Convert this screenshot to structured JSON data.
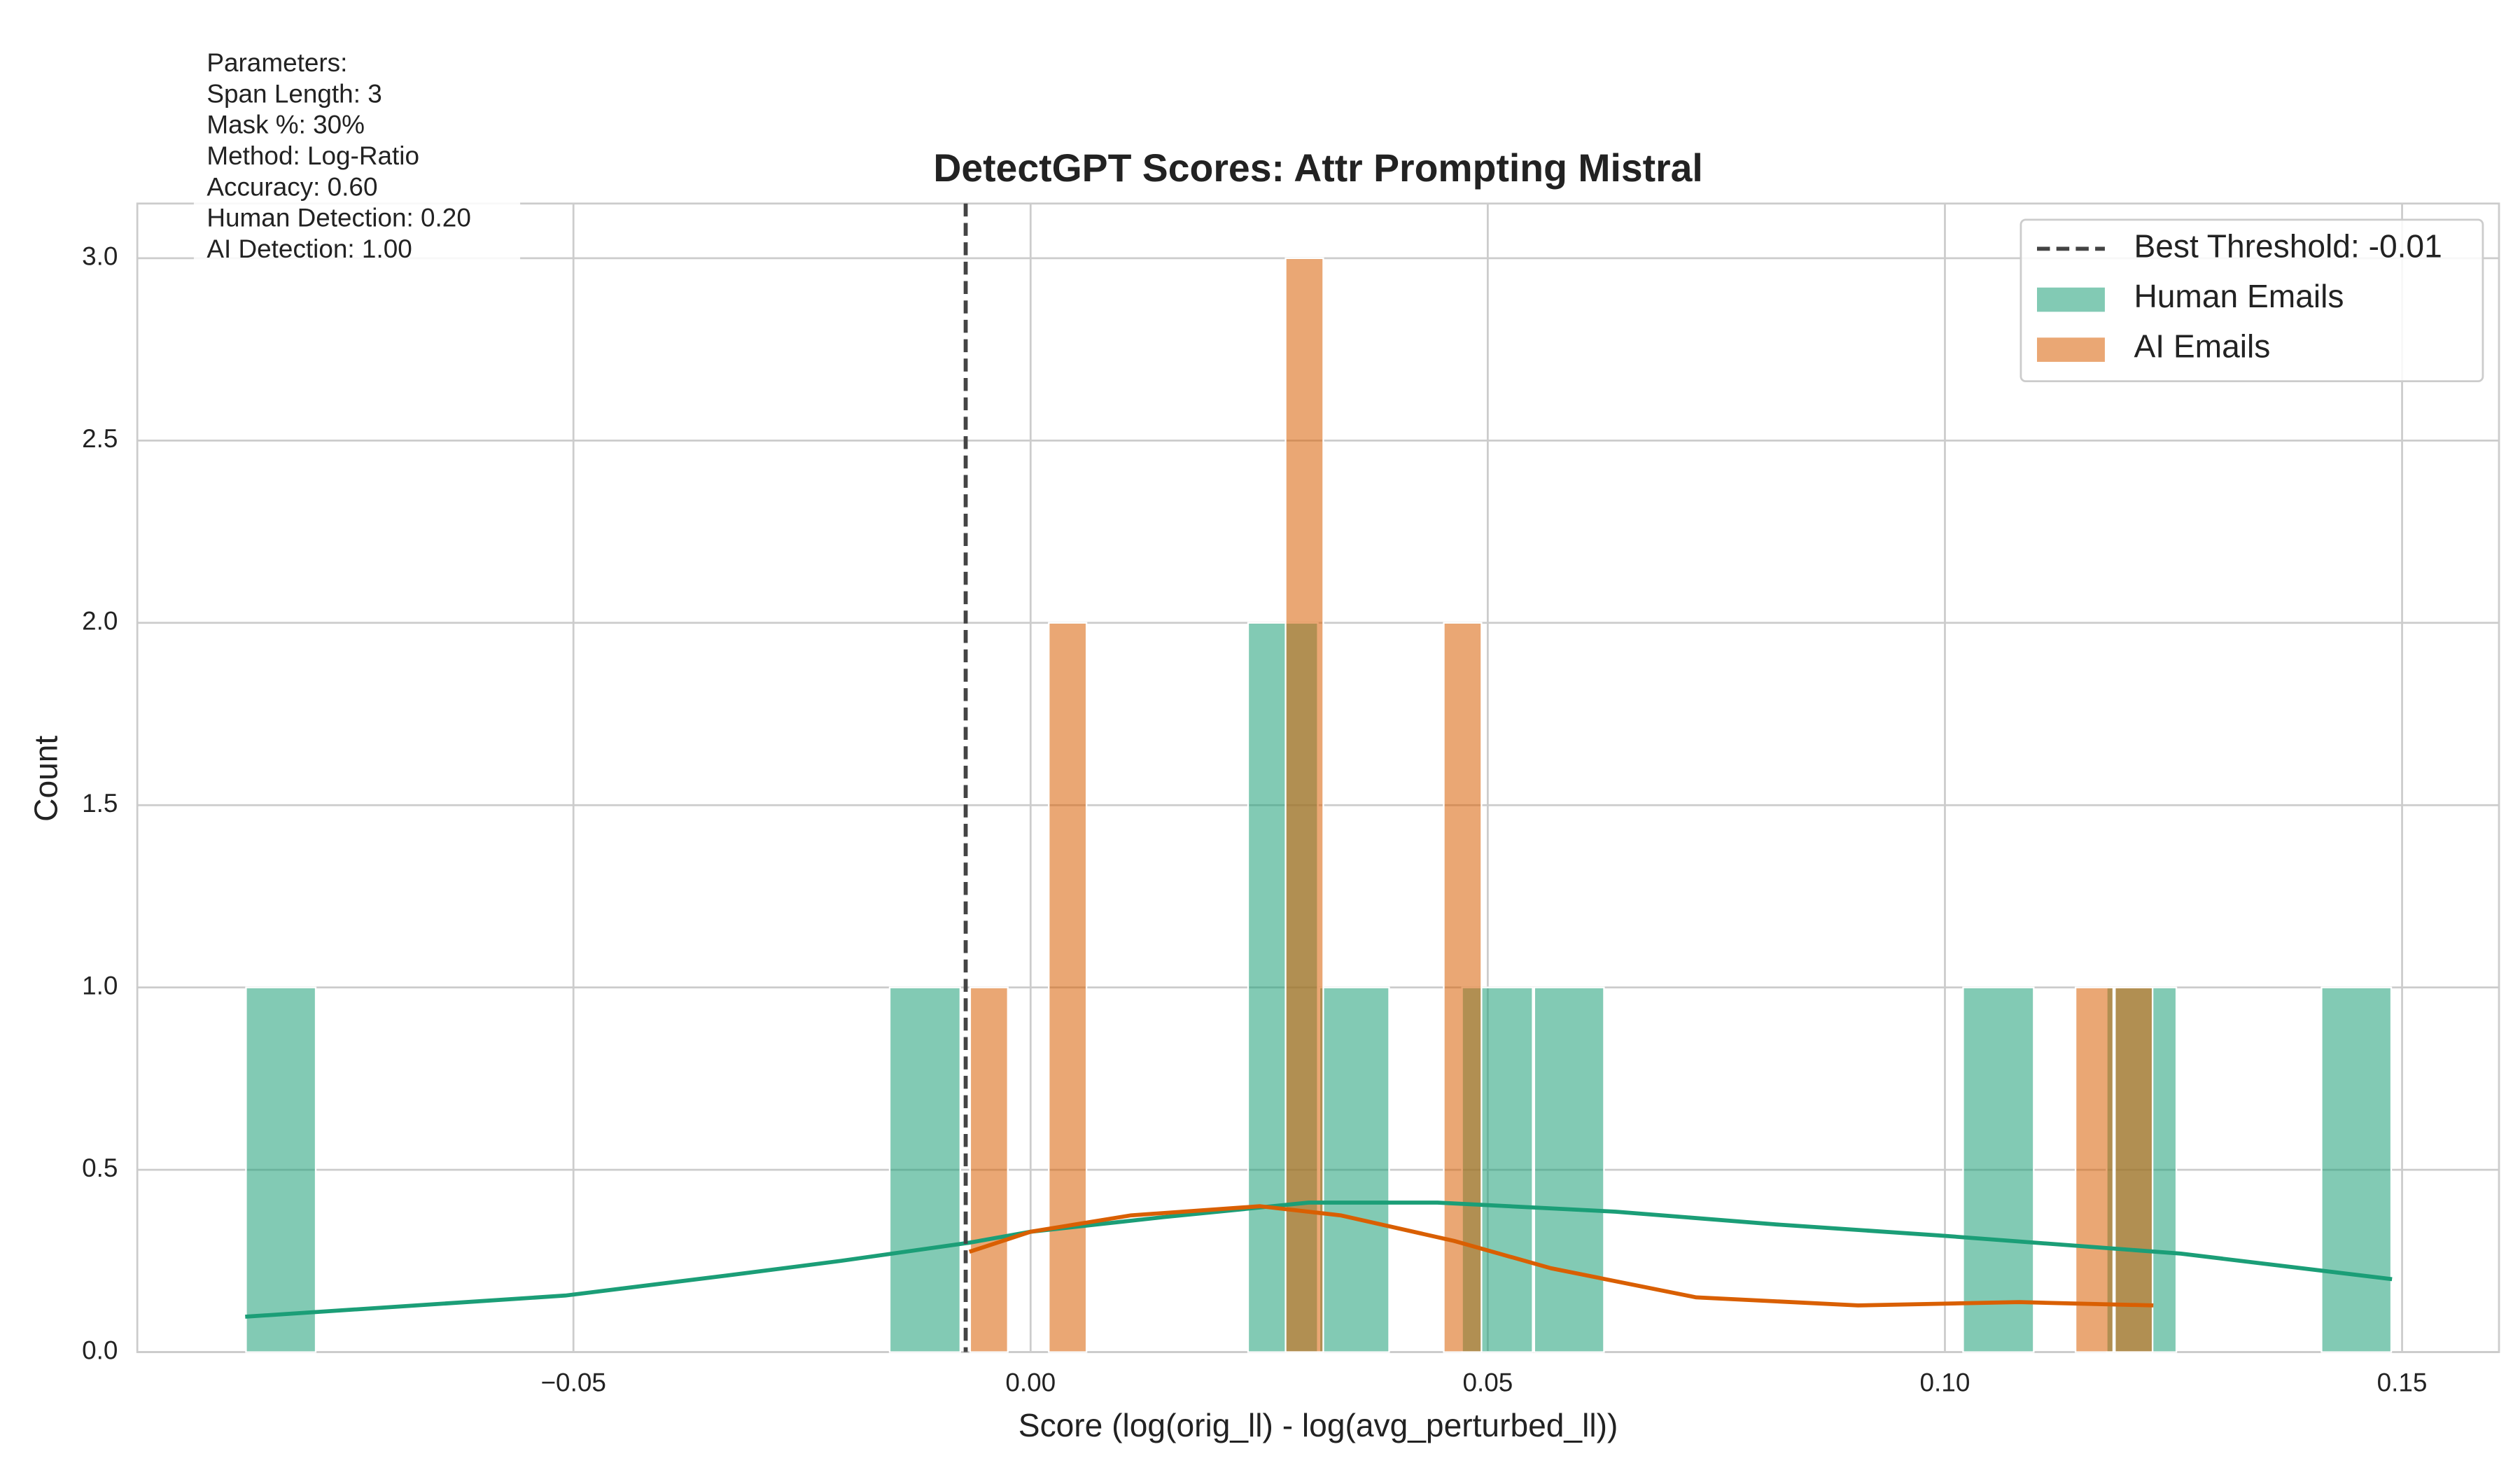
{
  "chart_data": {
    "type": "histogram",
    "title": "DetectGPT Scores: Attr Prompting Mistral",
    "x_label": "Score (log(orig_ll) - log(avg_perturbed_ll))",
    "y_label": "Count",
    "xlim": [
      -0.0977,
      0.1606
    ],
    "ylim": [
      0,
      3.15
    ],
    "xticks": [
      {
        "value": -0.05,
        "label": "−0.05"
      },
      {
        "value": 0,
        "label": "0.00"
      },
      {
        "value": 0.05,
        "label": "0.05"
      },
      {
        "value": 0.1,
        "label": "0.10"
      },
      {
        "value": 0.15,
        "label": "0.15"
      }
    ],
    "yticks": [
      {
        "value": 0,
        "label": "0.0"
      },
      0.5,
      {
        "value": 1,
        "label": "1.0"
      },
      1.5,
      {
        "value": 2,
        "label": "2.0"
      },
      2.5,
      {
        "value": 3,
        "label": "3.0"
      }
    ],
    "grid": true,
    "legend": "upper right",
    "threshold": {
      "name": "Best Threshold: -0.01",
      "value": -0.0071,
      "color": "#444444"
    },
    "annotation": [
      "Parameters:",
      "Span Length: 3",
      "Mask %: 30%",
      "Method: Log-Ratio",
      "Accuracy: 0.60",
      "Human Detection: 0.20",
      "AI Detection: 1.00"
    ],
    "series": [
      {
        "name": "Human Emails",
        "color": "#1b9e77",
        "bins": [
          -0.0859,
          -0.0781,
          -0.0702,
          -0.0624,
          -0.0546,
          -0.0468,
          -0.0389,
          -0.0311,
          -0.0233,
          -0.0155,
          -0.0076,
          0.0002,
          0.008,
          0.0158,
          0.0237,
          0.0315,
          0.0393,
          0.0471,
          0.055,
          0.0628,
          0.0706,
          0.0785,
          0.0863,
          0.0941,
          0.1019,
          0.1098,
          0.1176,
          0.1254,
          0.1332,
          0.1411,
          0.1489
        ],
        "values": [
          1,
          0,
          0,
          0,
          0,
          0,
          0,
          0,
          0,
          1,
          0,
          0,
          0,
          0,
          2,
          1,
          0,
          1,
          1,
          0,
          0,
          0,
          0,
          0,
          1,
          0,
          1,
          0,
          0,
          1
        ],
        "kde": {
          "x": [
            -0.0859,
            -0.0509,
            -0.0332,
            -0.0208,
            -0.0067,
            0,
            0.0145,
            0.0304,
            0.0445,
            0.064,
            0.0816,
            0.0993,
            0.1258,
            0.1489
          ],
          "y": [
            0.097,
            0.155,
            0.21,
            0.25,
            0.3,
            0.33,
            0.37,
            0.41,
            0.41,
            0.385,
            0.35,
            0.32,
            0.27,
            0.2
          ]
        }
      },
      {
        "name": "AI Emails",
        "color": "#d95f02",
        "bins": [
          -0.0067,
          -0.0024,
          0.0019,
          0.0062,
          0.0106,
          0.0149,
          0.0192,
          0.0235,
          0.0278,
          0.0321,
          0.0365,
          0.0408,
          0.0451,
          0.0494,
          0.0537,
          0.058,
          0.0624,
          0.0667,
          0.071,
          0.0753,
          0.0796,
          0.0839,
          0.0883,
          0.0926,
          0.0969,
          0.1012,
          0.1055,
          0.1098,
          0.1142,
          0.1185,
          0.1228
        ],
        "values": [
          1,
          0,
          2,
          0,
          0,
          0,
          0,
          0,
          3,
          0,
          0,
          0,
          2,
          0,
          0,
          0,
          0,
          0,
          0,
          0,
          0,
          0,
          0,
          0,
          0,
          0,
          0,
          0,
          1,
          1
        ],
        "kde": {
          "x": [
            -0.0067,
            0,
            0.011,
            0.0251,
            0.0339,
            0.0463,
            0.0569,
            0.0728,
            0.0905,
            0.1081,
            0.1228
          ],
          "y": [
            0.275,
            0.33,
            0.375,
            0.4,
            0.375,
            0.305,
            0.23,
            0.15,
            0.128,
            0.137,
            0.128
          ]
        }
      }
    ]
  }
}
